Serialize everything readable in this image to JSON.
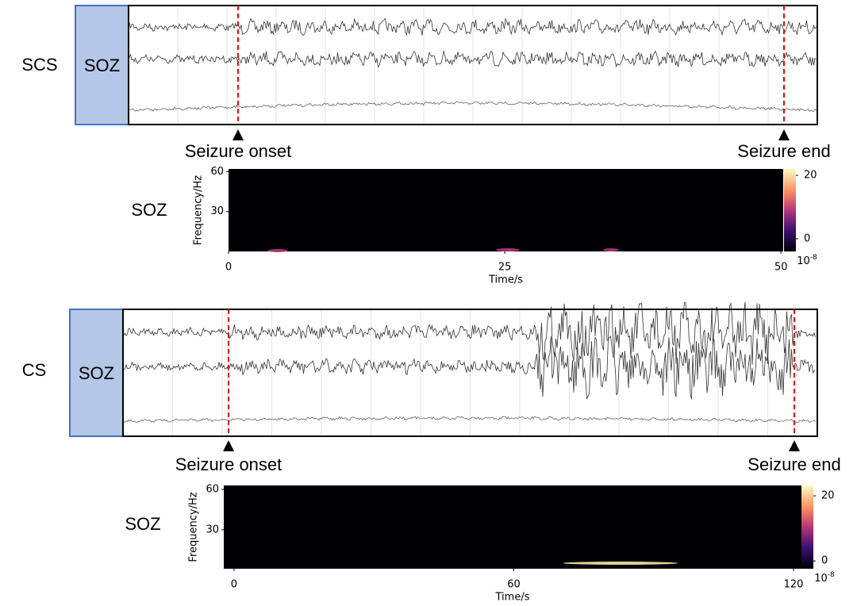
{
  "panels": [
    {
      "label": "SCS",
      "soz": "SOZ",
      "onset": "Seizure onset",
      "end": "Seizure end",
      "spectrogram": {
        "label": "SOZ",
        "ylabel": "Frequency/Hz",
        "xlabel": "Time/s",
        "xlim": [
          0,
          50.2
        ],
        "ylim": [
          0,
          62
        ],
        "xticks": [
          0,
          25,
          50
        ],
        "yticks": [
          30,
          60
        ],
        "clim": [
          -4,
          22
        ],
        "cticks": [
          0,
          20
        ],
        "cunit": {
          "base": "10",
          "exp": "-8"
        }
      }
    },
    {
      "label": "CS",
      "soz": "SOZ",
      "onset": "Seizure onset",
      "end": "Seizure end",
      "spectrogram": {
        "label": "SOZ",
        "ylabel": "Frequency/Hz",
        "xlabel": "Time/s",
        "xlim": [
          -2.2,
          121.7
        ],
        "ylim": [
          1,
          63
        ],
        "xticks": [
          0,
          60,
          120
        ],
        "yticks": [
          30,
          60
        ],
        "clim": [
          -2.4,
          23.2
        ],
        "cticks": [
          0,
          20
        ],
        "cunit": {
          "base": "10",
          "exp": "-8"
        }
      }
    }
  ]
}
